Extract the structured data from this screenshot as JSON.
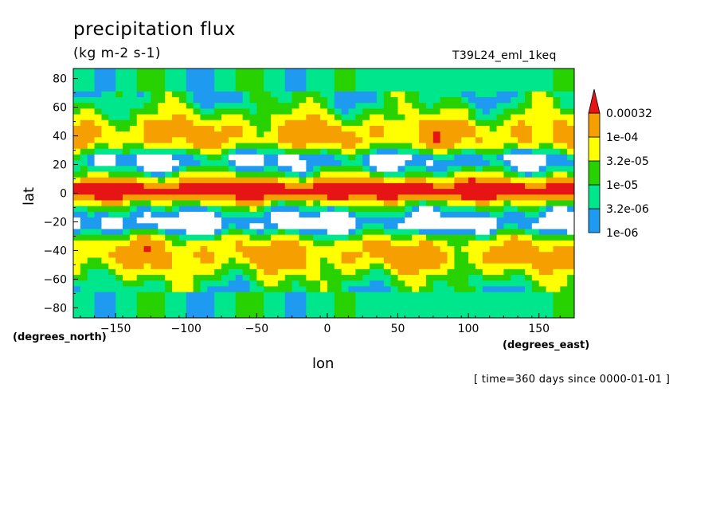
{
  "chart_data": {
    "type": "heatmap",
    "title": "precipitation flux",
    "units": "(kg m-2 s-1)",
    "run_id": "T39L24_eml_1keq",
    "xlabel": "lon",
    "ylabel": "lat",
    "x_units": "(degrees_east)",
    "y_units": "(degrees_north)",
    "xlim": [
      -180,
      175
    ],
    "ylim": [
      -87,
      87
    ],
    "x_ticks": [
      -150,
      -100,
      -50,
      0,
      50,
      100,
      150
    ],
    "x_tick_labels": [
      "−150",
      "−100",
      "−50",
      "0",
      "50",
      "100",
      "150"
    ],
    "y_ticks": [
      80,
      60,
      40,
      20,
      0,
      -20,
      -40,
      -60,
      -80
    ],
    "y_tick_labels": [
      "80",
      "60",
      "40",
      "20",
      "0",
      "−20",
      "−40",
      "−60",
      "−80"
    ],
    "levels": [
      1e-06,
      3.2e-06,
      1e-05,
      3.2e-05,
      0.0001,
      0.00032
    ],
    "legend_labels": [
      "1e-06",
      "3.2e-06",
      "1e-05",
      "3.2e-05",
      "1e-04",
      "0.00032"
    ],
    "level_colors": [
      "#ffffff",
      "#1e9bf0",
      "#00e68c",
      "#28d200",
      "#ffff00",
      "#f5a000",
      "#e61414"
    ],
    "time_note": "[ time=360 days since 0000-01-01 ]"
  }
}
